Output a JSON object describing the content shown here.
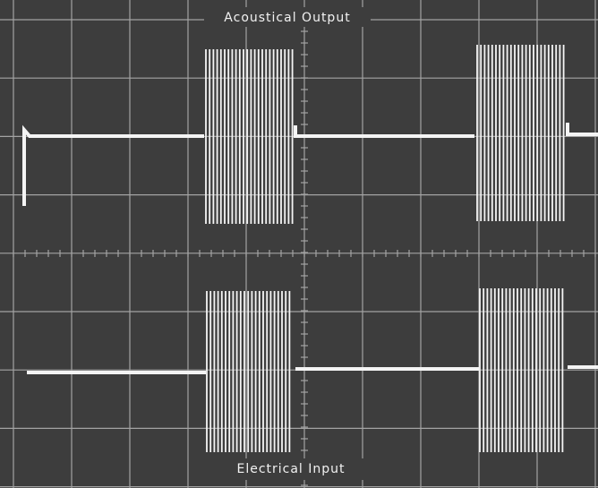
{
  "labels": {
    "top": "Acoustical Output",
    "bottom": "Electrical Input"
  }
}
